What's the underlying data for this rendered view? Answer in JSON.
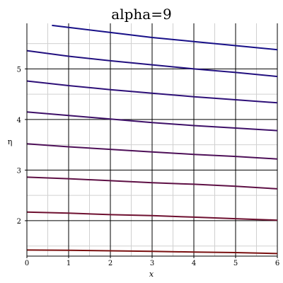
{
  "chart_data": {
    "type": "line",
    "title": "alpha=9",
    "xlabel": "x",
    "ylabel": "η",
    "xlim": [
      0,
      6
    ],
    "ylim": [
      1.3,
      5.9
    ],
    "x_ticks": [
      0,
      1,
      2,
      3,
      4,
      5,
      6
    ],
    "y_ticks": [
      2,
      3,
      4,
      5
    ],
    "grid": true,
    "series": [
      {
        "color": "#7a1010",
        "points": [
          [
            0,
            1.42
          ],
          [
            1,
            1.415
          ],
          [
            2,
            1.405
          ],
          [
            3,
            1.395
          ],
          [
            4,
            1.38
          ],
          [
            5,
            1.37
          ],
          [
            6,
            1.35
          ]
        ]
      },
      {
        "color": "#6e1030",
        "points": [
          [
            0,
            2.17
          ],
          [
            1,
            2.15
          ],
          [
            2,
            2.12
          ],
          [
            3,
            2.1
          ],
          [
            4,
            2.07
          ],
          [
            5,
            2.04
          ],
          [
            6,
            2.01
          ]
        ]
      },
      {
        "color": "#5e1045",
        "points": [
          [
            0,
            2.86
          ],
          [
            1,
            2.83
          ],
          [
            2,
            2.79
          ],
          [
            3,
            2.75
          ],
          [
            4,
            2.72
          ],
          [
            5,
            2.68
          ],
          [
            6,
            2.63
          ]
        ]
      },
      {
        "color": "#4e1058",
        "points": [
          [
            0,
            3.52
          ],
          [
            1,
            3.46
          ],
          [
            2,
            3.41
          ],
          [
            3,
            3.36
          ],
          [
            4,
            3.31
          ],
          [
            5,
            3.27
          ],
          [
            6,
            3.22
          ]
        ]
      },
      {
        "color": "#3e1068",
        "points": [
          [
            0,
            4.15
          ],
          [
            1,
            4.08
          ],
          [
            2,
            4.01
          ],
          [
            3,
            3.94
          ],
          [
            4,
            3.88
          ],
          [
            5,
            3.83
          ],
          [
            6,
            3.78
          ]
        ]
      },
      {
        "color": "#2e1078",
        "points": [
          [
            0,
            4.76
          ],
          [
            1,
            4.67
          ],
          [
            2,
            4.59
          ],
          [
            3,
            4.52
          ],
          [
            4,
            4.45
          ],
          [
            5,
            4.39
          ],
          [
            6,
            4.33
          ]
        ]
      },
      {
        "color": "#22107f",
        "points": [
          [
            0,
            5.36
          ],
          [
            1,
            5.25
          ],
          [
            2,
            5.16
          ],
          [
            3,
            5.08
          ],
          [
            4,
            5.0
          ],
          [
            5,
            4.93
          ],
          [
            6,
            4.85
          ]
        ]
      },
      {
        "color": "#181088",
        "points": [
          [
            0.6,
            5.86
          ],
          [
            1,
            5.82
          ],
          [
            2,
            5.72
          ],
          [
            3,
            5.62
          ],
          [
            4,
            5.54
          ],
          [
            5,
            5.46
          ],
          [
            6,
            5.38
          ]
        ]
      }
    ]
  }
}
